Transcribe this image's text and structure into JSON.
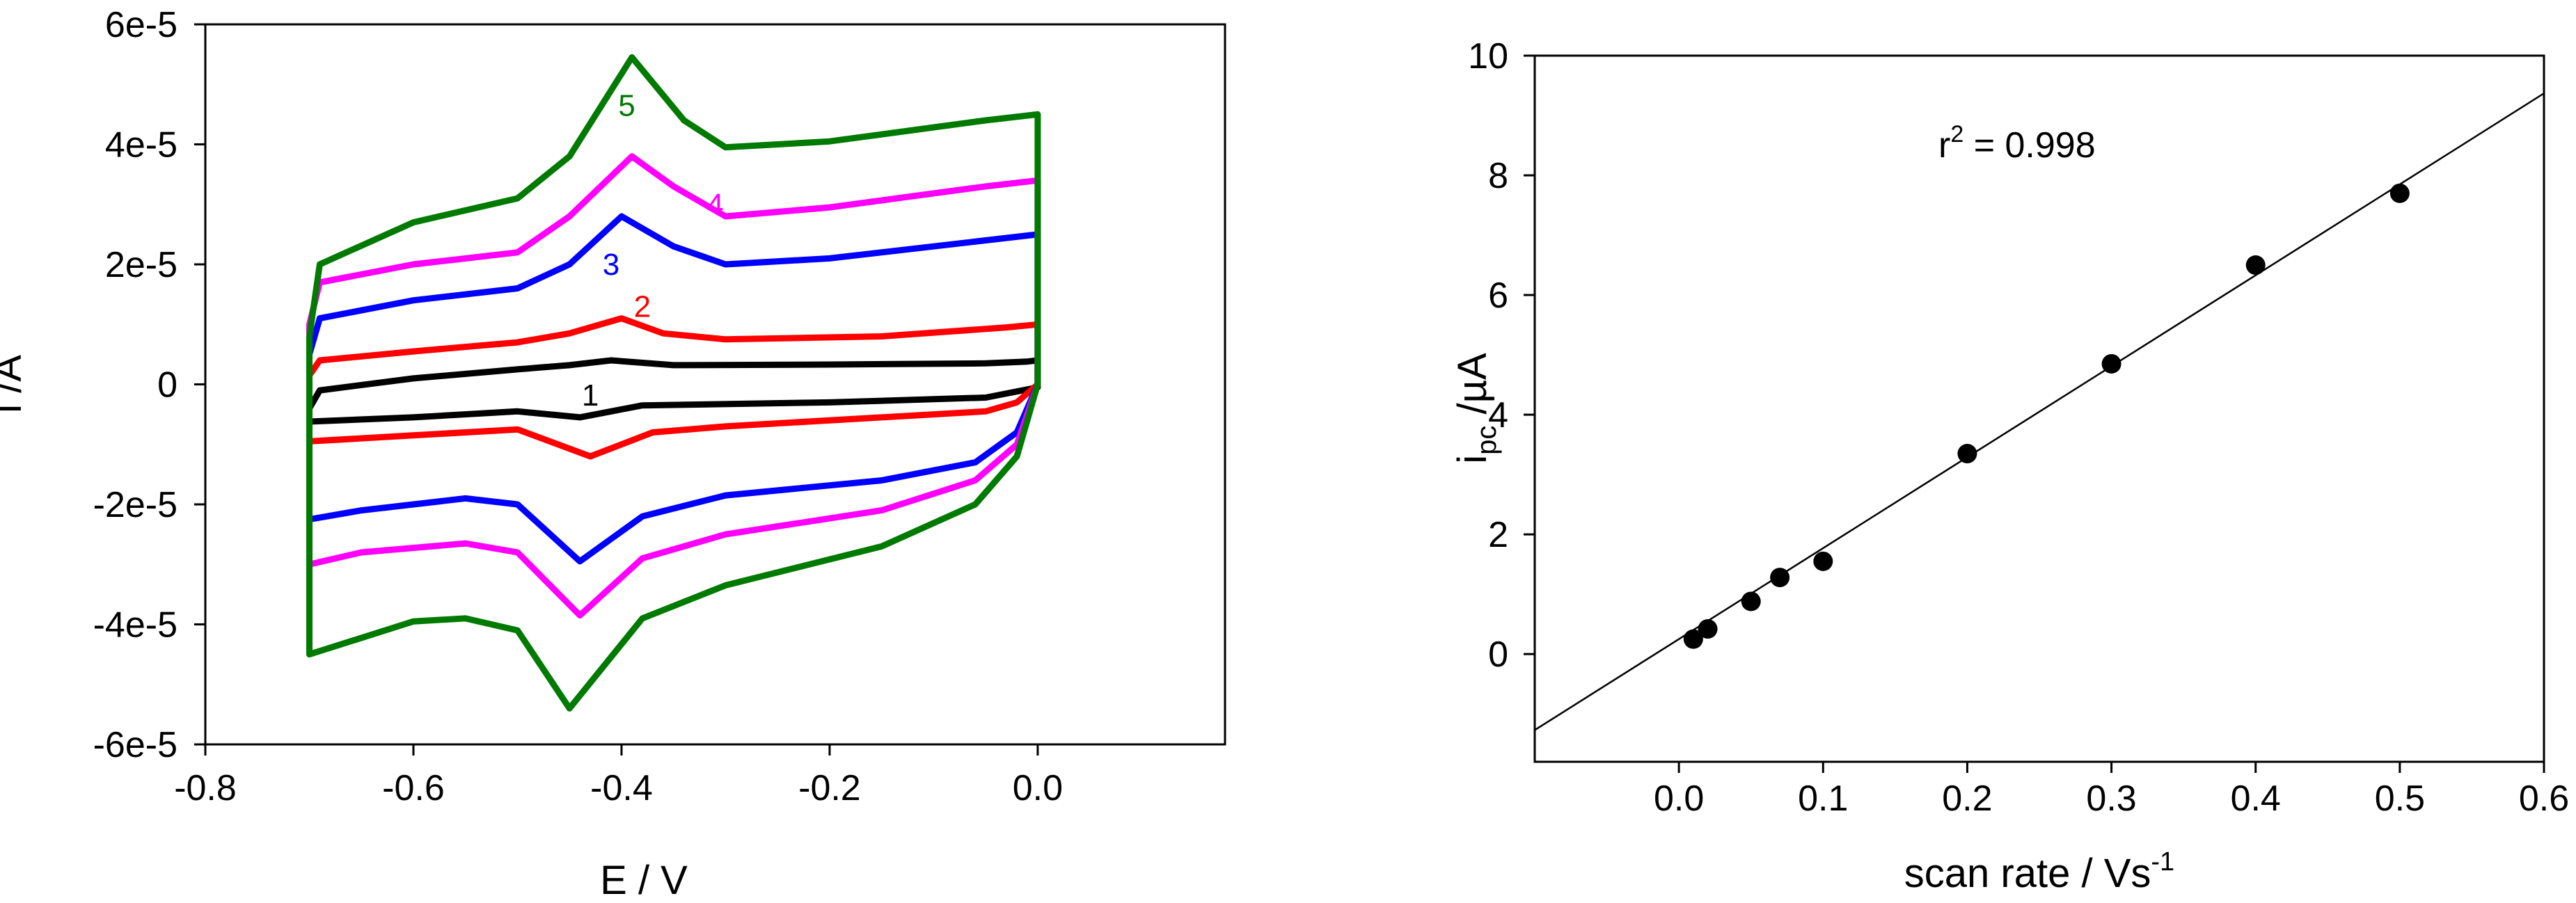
{
  "chart_data": [
    {
      "type": "line",
      "xlabel": "E / V",
      "ylabel": "i /A",
      "xlim": [
        -0.8,
        0.18
      ],
      "ylim": [
        -6e-05,
        6e-05
      ],
      "x_ticks": [
        -0.8,
        -0.6,
        -0.4,
        -0.2,
        0.0
      ],
      "x_tick_labels": [
        "-0.8",
        "-0.6",
        "-0.4",
        "-0.2",
        "0.0"
      ],
      "y_ticks": [
        6e-05,
        4e-05,
        2e-05,
        0,
        -2e-05,
        -4e-05,
        -6e-05
      ],
      "y_tick_labels": [
        "6e-5",
        "4e-5",
        "2e-5",
        "0",
        "-2e-5",
        "-4e-5",
        "-6e-5"
      ],
      "grid": false,
      "series": [
        {
          "name": "1",
          "color": "#000000",
          "label_pos": [
            -0.43,
            -1.8e-06
          ],
          "upper": [
            [
              -0.7,
              -4e-06
            ],
            [
              -0.69,
              -1e-06
            ],
            [
              -0.6,
              1e-06
            ],
            [
              -0.5,
              2.5e-06
            ],
            [
              -0.45,
              3.2e-06
            ],
            [
              -0.41,
              4e-06
            ],
            [
              -0.35,
              3.2e-06
            ],
            [
              -0.2,
              3.3e-06
            ],
            [
              -0.05,
              3.5e-06
            ],
            [
              -0.01,
              3.8e-06
            ],
            [
              0.0,
              4e-06
            ]
          ],
          "lower": [
            [
              -0.7,
              -6.2e-06
            ],
            [
              -0.6,
              -5.5e-06
            ],
            [
              -0.5,
              -4.5e-06
            ],
            [
              -0.44,
              -5.5e-06
            ],
            [
              -0.38,
              -3.5e-06
            ],
            [
              -0.2,
              -3e-06
            ],
            [
              -0.05,
              -2.2e-06
            ],
            [
              0.0,
              -5e-07
            ]
          ]
        },
        {
          "name": "2",
          "color": "#ff0000",
          "label_pos": [
            -0.38,
            1.3e-05
          ],
          "upper": [
            [
              -0.7,
              1.5e-06
            ],
            [
              -0.69,
              4e-06
            ],
            [
              -0.6,
              5.5e-06
            ],
            [
              -0.5,
              7e-06
            ],
            [
              -0.45,
              8.5e-06
            ],
            [
              -0.4,
              1.1e-05
            ],
            [
              -0.36,
              8.5e-06
            ],
            [
              -0.3,
              7.5e-06
            ],
            [
              -0.15,
              8e-06
            ],
            [
              -0.03,
              9.5e-06
            ],
            [
              0.0,
              1e-05
            ]
          ],
          "lower": [
            [
              -0.7,
              -9.5e-06
            ],
            [
              -0.6,
              -8.5e-06
            ],
            [
              -0.5,
              -7.5e-06
            ],
            [
              -0.43,
              -1.2e-05
            ],
            [
              -0.37,
              -8e-06
            ],
            [
              -0.3,
              -7e-06
            ],
            [
              -0.15,
              -5.5e-06
            ],
            [
              -0.05,
              -4.5e-06
            ],
            [
              -0.02,
              -3e-06
            ],
            [
              0.0,
              0.0
            ]
          ]
        },
        {
          "name": "3",
          "color": "#0000ff",
          "label_pos": [
            -0.41,
            2e-05
          ],
          "upper": [
            [
              -0.7,
              5e-06
            ],
            [
              -0.69,
              1.1e-05
            ],
            [
              -0.6,
              1.4e-05
            ],
            [
              -0.5,
              1.6e-05
            ],
            [
              -0.45,
              2e-05
            ],
            [
              -0.4,
              2.8e-05
            ],
            [
              -0.35,
              2.3e-05
            ],
            [
              -0.3,
              2e-05
            ],
            [
              -0.2,
              2.1e-05
            ],
            [
              -0.05,
              2.4e-05
            ],
            [
              0.0,
              2.5e-05
            ]
          ],
          "lower": [
            [
              -0.7,
              -2.25e-05
            ],
            [
              -0.65,
              -2.1e-05
            ],
            [
              -0.55,
              -1.9e-05
            ],
            [
              -0.5,
              -2e-05
            ],
            [
              -0.44,
              -2.95e-05
            ],
            [
              -0.38,
              -2.2e-05
            ],
            [
              -0.3,
              -1.85e-05
            ],
            [
              -0.15,
              -1.6e-05
            ],
            [
              -0.06,
              -1.3e-05
            ],
            [
              -0.02,
              -8e-06
            ],
            [
              0.0,
              0.0
            ]
          ]
        },
        {
          "name": "4",
          "color": "#ff00ff",
          "label_pos": [
            -0.31,
            3e-05
          ],
          "upper": [
            [
              -0.7,
              1e-05
            ],
            [
              -0.69,
              1.7e-05
            ],
            [
              -0.6,
              2e-05
            ],
            [
              -0.5,
              2.2e-05
            ],
            [
              -0.45,
              2.8e-05
            ],
            [
              -0.39,
              3.8e-05
            ],
            [
              -0.35,
              3.3e-05
            ],
            [
              -0.3,
              2.8e-05
            ],
            [
              -0.2,
              2.95e-05
            ],
            [
              -0.05,
              3.3e-05
            ],
            [
              0.0,
              3.4e-05
            ]
          ],
          "lower": [
            [
              -0.7,
              -3e-05
            ],
            [
              -0.65,
              -2.8e-05
            ],
            [
              -0.55,
              -2.65e-05
            ],
            [
              -0.5,
              -2.8e-05
            ],
            [
              -0.44,
              -3.85e-05
            ],
            [
              -0.38,
              -2.9e-05
            ],
            [
              -0.3,
              -2.5e-05
            ],
            [
              -0.15,
              -2.1e-05
            ],
            [
              -0.06,
              -1.6e-05
            ],
            [
              -0.02,
              -1e-05
            ],
            [
              0.0,
              0.0
            ]
          ]
        },
        {
          "name": "5",
          "color": "#007a00",
          "label_pos": [
            -0.395,
            4.65e-05
          ],
          "upper": [
            [
              -0.7,
              8e-06
            ],
            [
              -0.69,
              2e-05
            ],
            [
              -0.6,
              2.7e-05
            ],
            [
              -0.5,
              3.1e-05
            ],
            [
              -0.45,
              3.8e-05
            ],
            [
              -0.39,
              5.45e-05
            ],
            [
              -0.34,
              4.4e-05
            ],
            [
              -0.3,
              3.95e-05
            ],
            [
              -0.2,
              4.05e-05
            ],
            [
              -0.05,
              4.4e-05
            ],
            [
              0.0,
              4.5e-05
            ]
          ],
          "lower": [
            [
              -0.7,
              -4.5e-05
            ],
            [
              -0.6,
              -3.95e-05
            ],
            [
              -0.55,
              -3.9e-05
            ],
            [
              -0.5,
              -4.1e-05
            ],
            [
              -0.45,
              -5.4e-05
            ],
            [
              -0.38,
              -3.9e-05
            ],
            [
              -0.3,
              -3.35e-05
            ],
            [
              -0.15,
              -2.7e-05
            ],
            [
              -0.06,
              -2e-05
            ],
            [
              -0.02,
              -1.2e-05
            ],
            [
              0.0,
              0.0
            ]
          ]
        }
      ]
    },
    {
      "type": "scatter",
      "xlabel_base": "scan rate / Vs",
      "xlabel_sup": "-1",
      "ylabel_base": "i",
      "ylabel_sub": "pc",
      "ylabel_rest": " /µA",
      "xlim": [
        -0.1,
        0.6
      ],
      "ylim": [
        -1.8,
        10
      ],
      "x_ticks": [
        0.0,
        0.1,
        0.2,
        0.3,
        0.4,
        0.5,
        0.6
      ],
      "x_tick_labels": [
        "0.0",
        "0.1",
        "0.2",
        "0.3",
        "0.4",
        "0.5",
        "0.6"
      ],
      "y_ticks": [
        0,
        2,
        4,
        6,
        8,
        10
      ],
      "y_tick_labels": [
        "0",
        "2",
        "4",
        "6",
        "8",
        "10"
      ],
      "grid": false,
      "points": [
        [
          0.01,
          0.25
        ],
        [
          0.02,
          0.42
        ],
        [
          0.05,
          0.88
        ],
        [
          0.07,
          1.28
        ],
        [
          0.1,
          1.55
        ],
        [
          0.2,
          3.35
        ],
        [
          0.3,
          4.85
        ],
        [
          0.4,
          6.5
        ],
        [
          0.5,
          7.7
        ]
      ],
      "fit_line": {
        "slope": 15.2,
        "intercept": 0.25
      },
      "annotation_base": "r",
      "annotation_sup": "2",
      "annotation_rest": " = 0.998",
      "annotation_pos": [
        0.18,
        8.3
      ]
    }
  ]
}
